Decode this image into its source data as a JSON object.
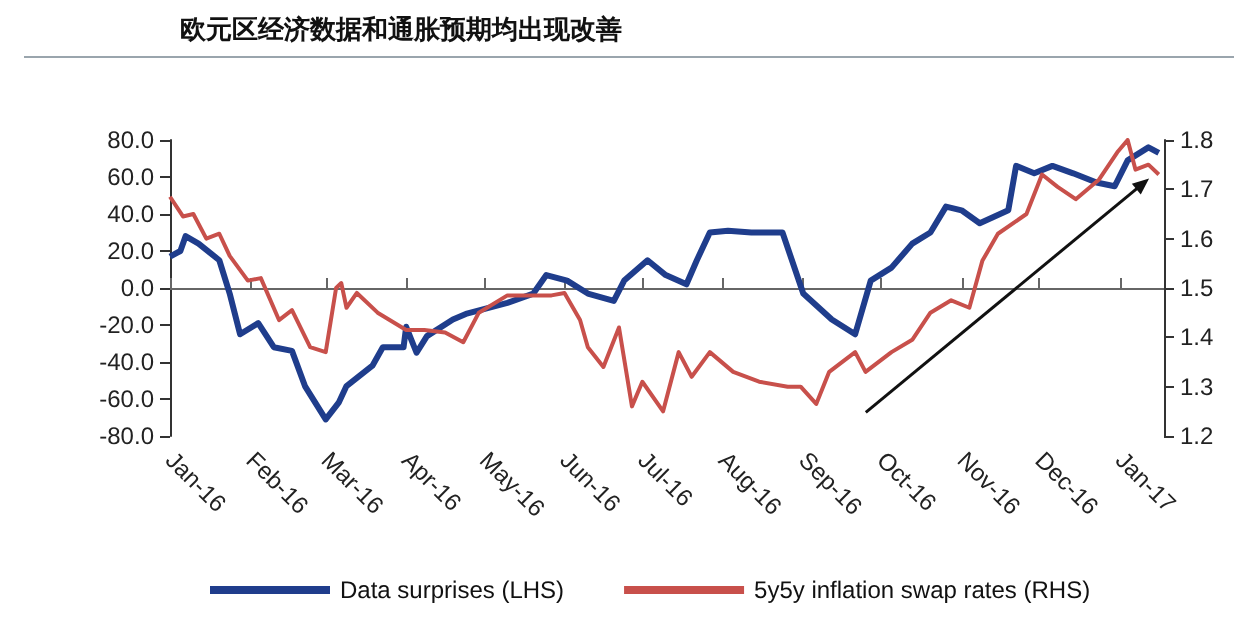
{
  "chart_data": {
    "type": "line",
    "title": "欧元区经济数据和通胀预期均出现改善",
    "xlim": [
      "2016-01-01",
      "2017-01-18"
    ],
    "xticks": [
      {
        "value": "2016-01-01",
        "label": "Jan-16"
      },
      {
        "value": "2016-02-01",
        "label": "Feb-16"
      },
      {
        "value": "2016-03-01",
        "label": "Mar-16"
      },
      {
        "value": "2016-04-01",
        "label": "Apr-16"
      },
      {
        "value": "2016-05-01",
        "label": "May-16"
      },
      {
        "value": "2016-06-01",
        "label": "Jun-16"
      },
      {
        "value": "2016-07-01",
        "label": "Jul-16"
      },
      {
        "value": "2016-08-01",
        "label": "Aug-16"
      },
      {
        "value": "2016-09-01",
        "label": "Sep-16"
      },
      {
        "value": "2016-10-01",
        "label": "Oct-16"
      },
      {
        "value": "2016-11-01",
        "label": "Nov-16"
      },
      {
        "value": "2016-12-01",
        "label": "Dec-16"
      },
      {
        "value": "2017-01-01",
        "label": "Jan-17"
      }
    ],
    "ylim": [
      -80,
      80
    ],
    "yticks": [
      {
        "value": -80,
        "label": "-80.0"
      },
      {
        "value": -60,
        "label": "-60.0"
      },
      {
        "value": -40,
        "label": "-40.0"
      },
      {
        "value": -20,
        "label": "-20.0"
      },
      {
        "value": 0,
        "label": "0.0"
      },
      {
        "value": 20,
        "label": "20.0"
      },
      {
        "value": 40,
        "label": "40.0"
      },
      {
        "value": 60,
        "label": "60.0"
      },
      {
        "value": 80,
        "label": "80.0"
      }
    ],
    "y2lim": [
      1.2,
      1.8
    ],
    "y2ticks": [
      1.2,
      1.3,
      1.4,
      1.5,
      1.6,
      1.7,
      1.8
    ],
    "legend": "bottom",
    "series": [
      {
        "name": "Data surprises (LHS)",
        "color": "#1f3d8c",
        "x": [
          "2016-01-01",
          "2016-01-05",
          "2016-01-07",
          "2016-01-12",
          "2016-01-20",
          "2016-01-24",
          "2016-01-28",
          "2016-02-04",
          "2016-02-10",
          "2016-02-17",
          "2016-02-22",
          "2016-03-01",
          "2016-03-06",
          "2016-03-09",
          "2016-03-19",
          "2016-03-23",
          "2016-03-31",
          "2016-04-01",
          "2016-04-05",
          "2016-04-09",
          "2016-04-19",
          "2016-04-24",
          "2016-05-10",
          "2016-05-20",
          "2016-05-25",
          "2016-06-02",
          "2016-06-10",
          "2016-06-20",
          "2016-06-24",
          "2016-07-03",
          "2016-07-10",
          "2016-07-18",
          "2016-07-22",
          "2016-07-27",
          "2016-08-03",
          "2016-08-12",
          "2016-08-24",
          "2016-09-01",
          "2016-09-12",
          "2016-09-21",
          "2016-09-27",
          "2016-10-05",
          "2016-10-13",
          "2016-10-20",
          "2016-10-26",
          "2016-11-01",
          "2016-11-08",
          "2016-11-19",
          "2016-11-22",
          "2016-11-29",
          "2016-12-06",
          "2016-12-14",
          "2016-12-23",
          "2016-12-30",
          "2017-01-04",
          "2017-01-12",
          "2017-01-16"
        ],
        "values": [
          17,
          20,
          28,
          24,
          15,
          -3,
          -25,
          -19,
          -32,
          -34,
          -53,
          -71,
          -62,
          -53,
          -42,
          -32,
          -32,
          -21,
          -35,
          -26,
          -17,
          -14,
          -8,
          -3,
          7,
          4,
          -3,
          -7,
          4,
          15,
          7,
          2,
          15,
          30,
          31,
          30,
          30,
          -3,
          -17,
          -25,
          4,
          11,
          24,
          30,
          44,
          42,
          35,
          42,
          66,
          62,
          66,
          62,
          57,
          55,
          69,
          76,
          73
        ]
      },
      {
        "name": "5y5y inflation swap rates (RHS)",
        "color": "#c8504b",
        "axis": "y2",
        "x": [
          "2016-01-01",
          "2016-01-06",
          "2016-01-10",
          "2016-01-15",
          "2016-01-20",
          "2016-01-24",
          "2016-01-31",
          "2016-02-05",
          "2016-02-12",
          "2016-02-17",
          "2016-02-24",
          "2016-03-01",
          "2016-03-05",
          "2016-03-07",
          "2016-03-09",
          "2016-03-13",
          "2016-03-21",
          "2016-04-01",
          "2016-04-08",
          "2016-04-16",
          "2016-04-23",
          "2016-04-29",
          "2016-05-10",
          "2016-05-27",
          "2016-06-01",
          "2016-06-07",
          "2016-06-10",
          "2016-06-16",
          "2016-06-22",
          "2016-06-27",
          "2016-07-01",
          "2016-07-09",
          "2016-07-15",
          "2016-07-20",
          "2016-07-27",
          "2016-08-05",
          "2016-08-15",
          "2016-08-26",
          "2016-08-31",
          "2016-09-06",
          "2016-09-11",
          "2016-09-21",
          "2016-09-25",
          "2016-10-05",
          "2016-10-13",
          "2016-10-20",
          "2016-10-28",
          "2016-11-04",
          "2016-11-09",
          "2016-11-15",
          "2016-11-26",
          "2016-12-02",
          "2016-12-08",
          "2016-12-15",
          "2016-12-24",
          "2016-12-31",
          "2017-01-04",
          "2017-01-07",
          "2017-01-12",
          "2017-01-16"
        ],
        "values": [
          1.685,
          1.645,
          1.65,
          1.6,
          1.61,
          1.565,
          1.515,
          1.52,
          1.435,
          1.455,
          1.38,
          1.37,
          1.5,
          1.51,
          1.46,
          1.49,
          1.45,
          1.415,
          1.415,
          1.41,
          1.39,
          1.45,
          1.485,
          1.485,
          1.49,
          1.435,
          1.38,
          1.34,
          1.42,
          1.26,
          1.31,
          1.25,
          1.37,
          1.32,
          1.37,
          1.33,
          1.31,
          1.3,
          1.3,
          1.265,
          1.33,
          1.37,
          1.33,
          1.37,
          1.395,
          1.45,
          1.475,
          1.46,
          1.555,
          1.61,
          1.65,
          1.73,
          1.705,
          1.68,
          1.72,
          1.775,
          1.8,
          1.74,
          1.75,
          1.73
        ]
      }
    ]
  }
}
